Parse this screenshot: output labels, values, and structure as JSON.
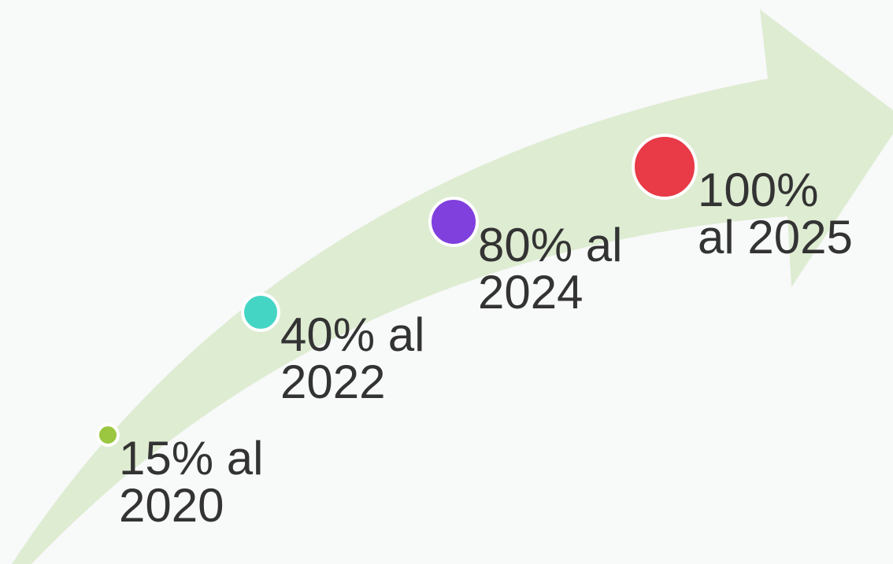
{
  "milestones": [
    {
      "line1": "15% al",
      "line2": "2020",
      "color": "#9bc740"
    },
    {
      "line1": "40% al",
      "line2": "2022",
      "color": "#45d5c5"
    },
    {
      "line1": "80% al",
      "line2": "2024",
      "color": "#8040dd"
    },
    {
      "line1": "100%",
      "line2": "al 2025",
      "color": "#e83a47"
    }
  ],
  "arrow_color": "#deecd2",
  "background_color": "#f8f9f9"
}
